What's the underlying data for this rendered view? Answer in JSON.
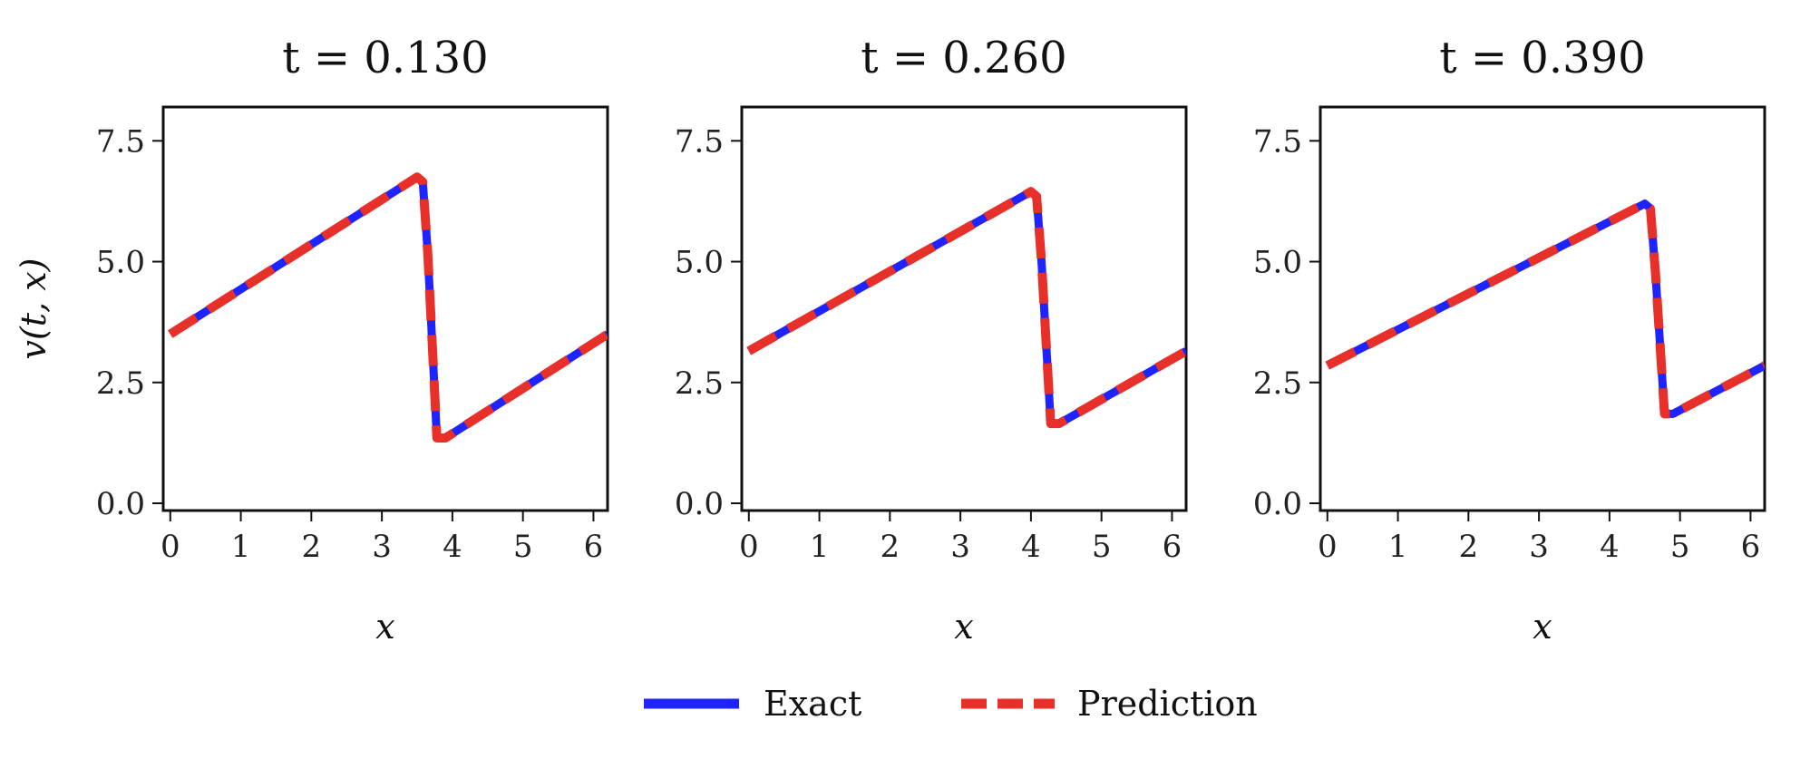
{
  "chart_data": [
    {
      "type": "line",
      "title": "t = 0.130",
      "xlabel": "x",
      "ylabel": "v(t, x)",
      "xlim": [
        -0.1,
        6.2
      ],
      "ylim": [
        -0.15,
        8.2
      ],
      "xticks": [
        0,
        1,
        2,
        3,
        4,
        5,
        6
      ],
      "yticks": [
        "0.0",
        "2.5",
        "5.0",
        "7.5"
      ],
      "grid": false,
      "series": [
        {
          "name": "Exact",
          "color": "#1f24ff",
          "style": "solid",
          "x": [
            0.0,
            3.5,
            3.58,
            3.65,
            3.78,
            3.9,
            6.2
          ],
          "y": [
            3.5,
            6.75,
            6.65,
            5.2,
            1.35,
            1.35,
            3.5
          ]
        },
        {
          "name": "Prediction",
          "color": "#e8302a",
          "style": "dashed",
          "x": [
            0.0,
            3.5,
            3.58,
            3.65,
            3.78,
            3.9,
            6.2
          ],
          "y": [
            3.5,
            6.75,
            6.65,
            5.2,
            1.35,
            1.35,
            3.5
          ]
        }
      ]
    },
    {
      "type": "line",
      "title": "t = 0.260",
      "xlabel": "x",
      "ylabel": "",
      "xlim": [
        -0.1,
        6.2
      ],
      "ylim": [
        -0.15,
        8.2
      ],
      "xticks": [
        0,
        1,
        2,
        3,
        4,
        5,
        6
      ],
      "yticks": [
        "0.0",
        "2.5",
        "5.0",
        "7.5"
      ],
      "grid": false,
      "series": [
        {
          "name": "Exact",
          "color": "#1f24ff",
          "style": "solid",
          "x": [
            0.0,
            4.0,
            4.08,
            4.15,
            4.28,
            4.4,
            6.2
          ],
          "y": [
            3.15,
            6.45,
            6.35,
            5.0,
            1.65,
            1.65,
            3.15
          ]
        },
        {
          "name": "Prediction",
          "color": "#e8302a",
          "style": "dashed",
          "x": [
            0.0,
            4.0,
            4.08,
            4.15,
            4.28,
            4.4,
            6.2
          ],
          "y": [
            3.15,
            6.45,
            6.35,
            5.0,
            1.65,
            1.65,
            3.15
          ]
        }
      ]
    },
    {
      "type": "line",
      "title": "t = 0.390",
      "xlabel": "x",
      "ylabel": "",
      "xlim": [
        -0.1,
        6.2
      ],
      "ylim": [
        -0.15,
        8.2
      ],
      "xticks": [
        0,
        1,
        2,
        3,
        4,
        5,
        6
      ],
      "yticks": [
        "0.0",
        "2.5",
        "5.0",
        "7.5"
      ],
      "grid": false,
      "series": [
        {
          "name": "Exact",
          "color": "#1f24ff",
          "style": "solid",
          "x": [
            0.0,
            4.5,
            4.58,
            4.65,
            4.78,
            4.9,
            6.2
          ],
          "y": [
            2.85,
            6.2,
            6.1,
            4.8,
            1.85,
            1.85,
            2.85
          ]
        },
        {
          "name": "Prediction",
          "color": "#e8302a",
          "style": "dashed",
          "x": [
            0.0,
            4.5,
            4.58,
            4.65,
            4.78,
            4.9,
            6.2
          ],
          "y": [
            2.85,
            6.2,
            6.1,
            4.8,
            1.85,
            1.85,
            2.85
          ]
        }
      ]
    }
  ],
  "legend": {
    "position": "bottom-center",
    "items": [
      {
        "label": "Exact",
        "color": "#1f24ff",
        "style": "solid"
      },
      {
        "label": "Prediction",
        "color": "#e8302a",
        "style": "dashed"
      }
    ]
  }
}
